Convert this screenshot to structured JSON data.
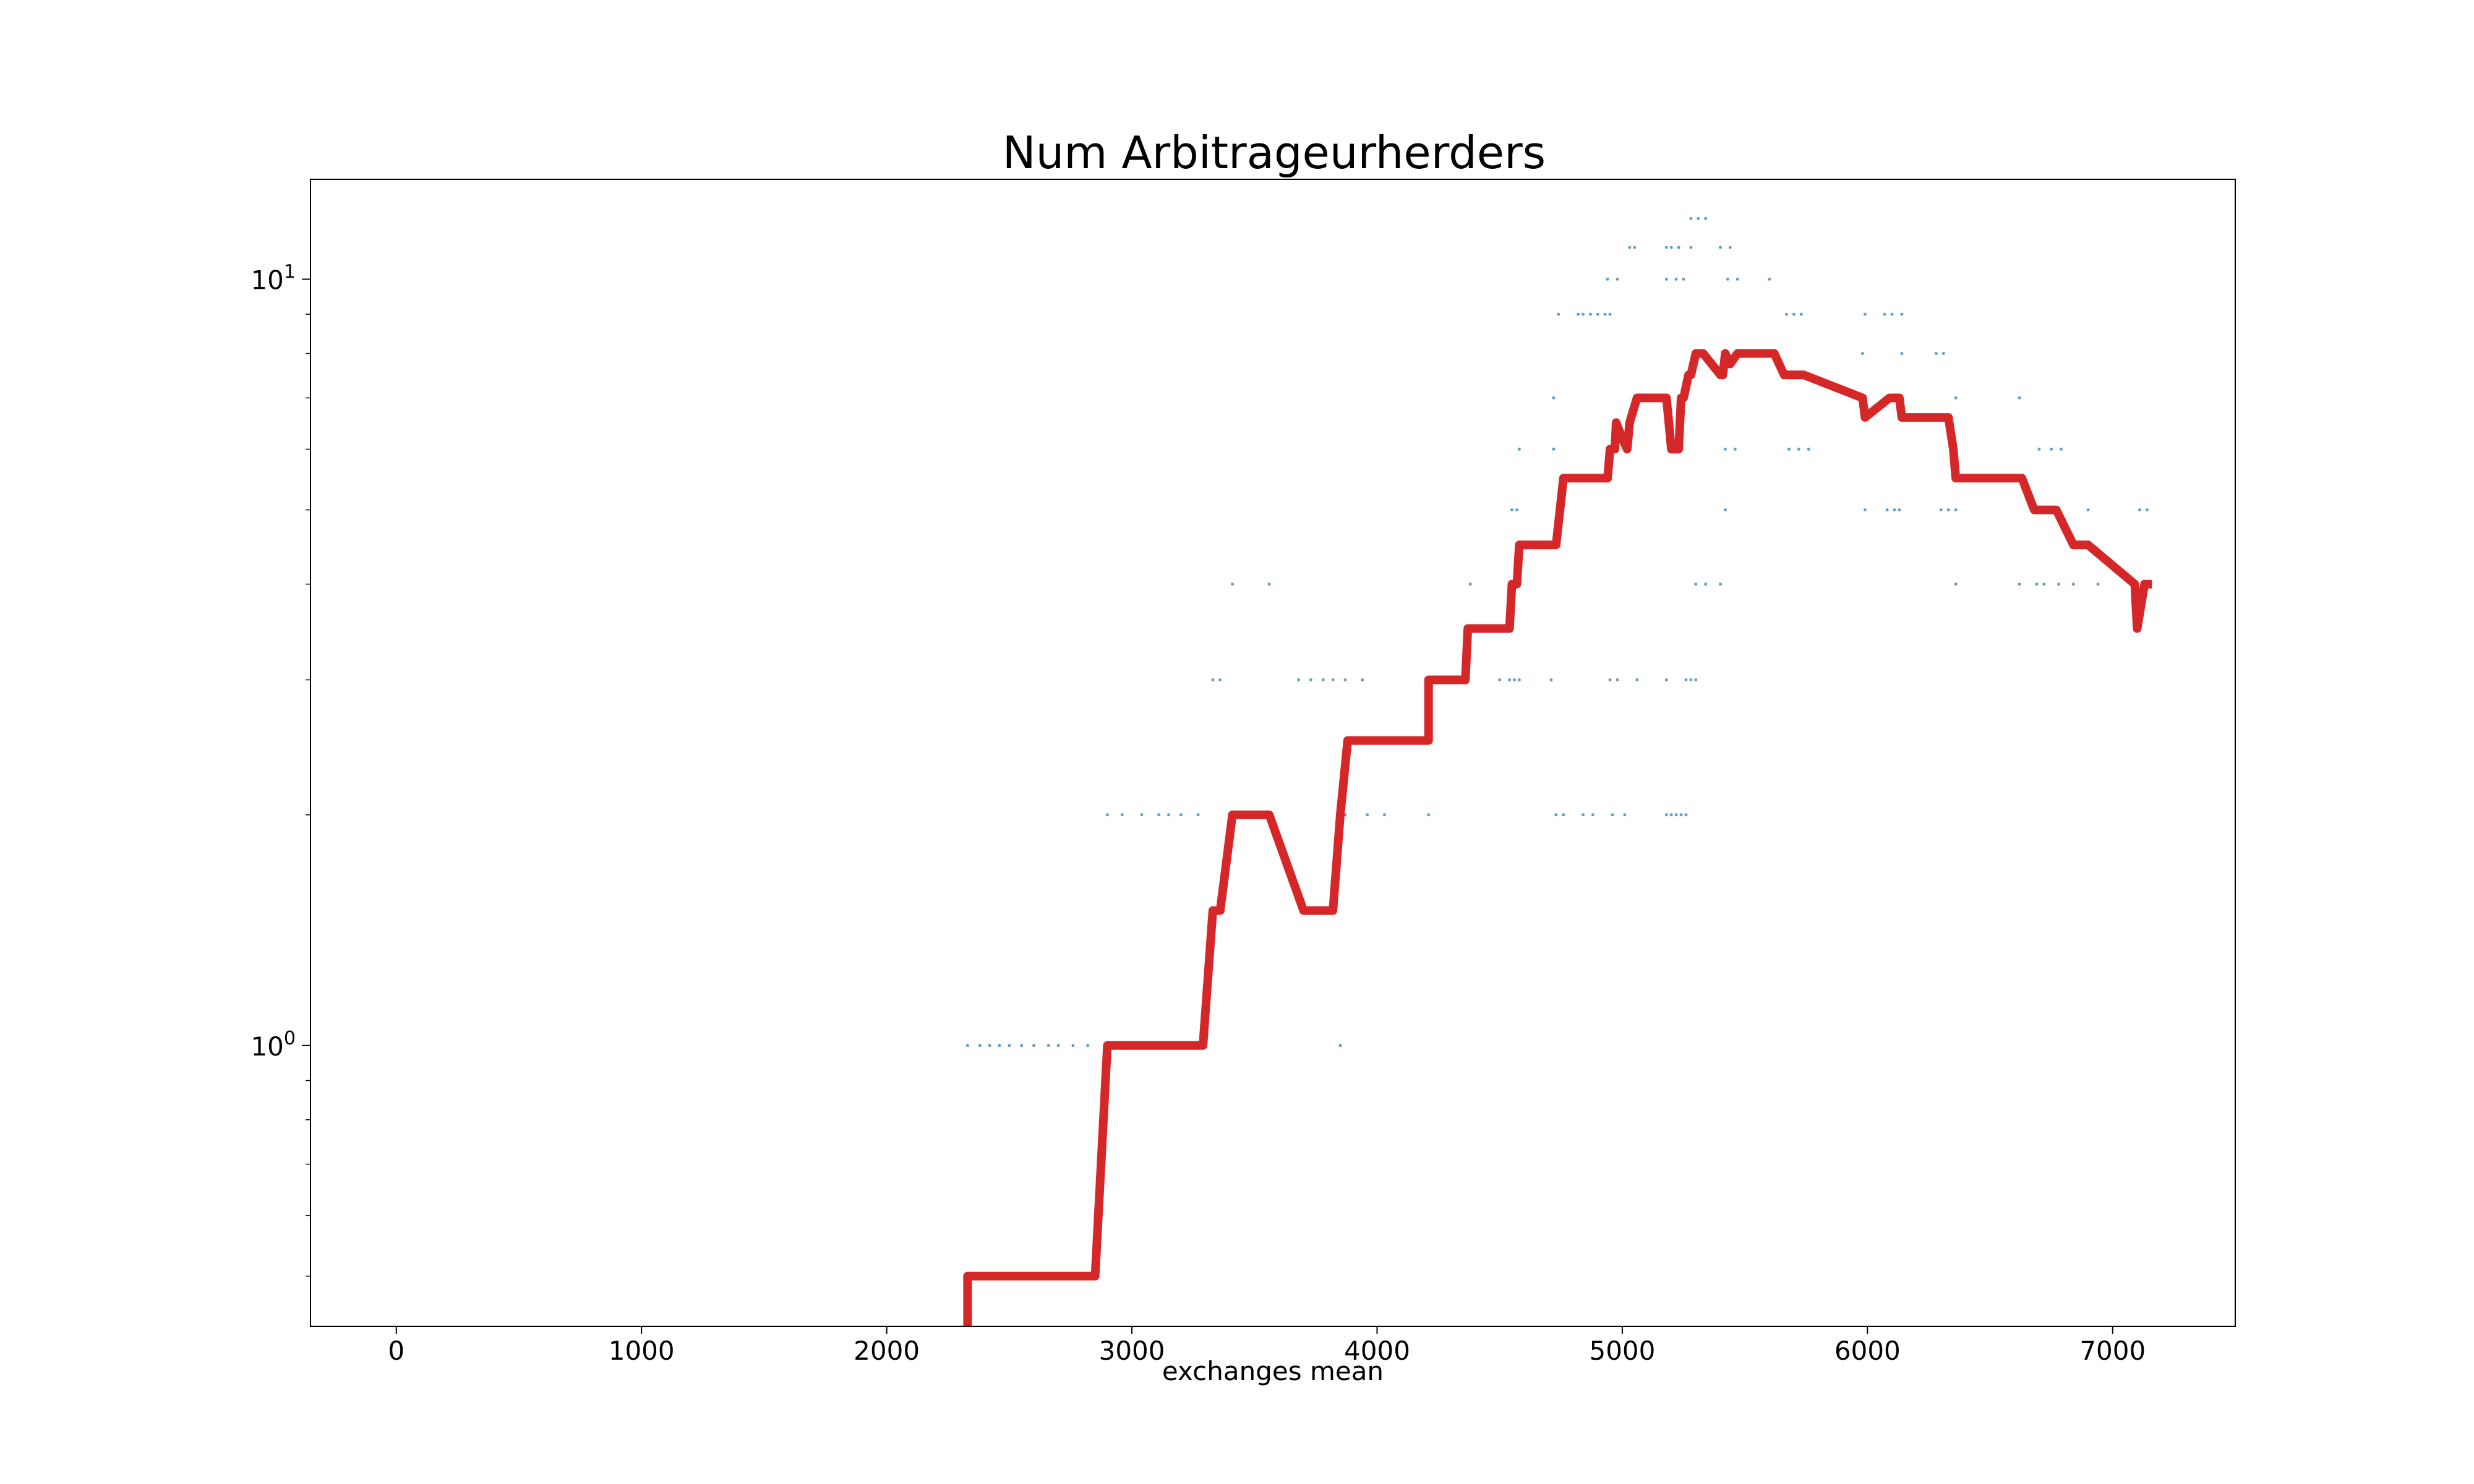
{
  "chart_data": {
    "type": "line",
    "title": "Num Arbitrageurherders",
    "xlabel": "exchanges mean",
    "ylabel": "",
    "x_ticks": [
      "0",
      "1000",
      "2000",
      "3000",
      "4000",
      "5000",
      "6000",
      "7000"
    ],
    "y_tick_labels": [
      {
        "base": "10",
        "exp": "0",
        "value": 1
      },
      {
        "base": "10",
        "exp": "1",
        "value": 10
      }
    ],
    "xlim": [
      -350,
      7500
    ],
    "ylim": [
      0.43,
      13.5
    ],
    "yscale": "log",
    "grid": false,
    "legend": "none",
    "series": [
      {
        "kind": "line",
        "color": "#d62728",
        "x": [
          2330,
          2330,
          2850,
          2900,
          3290,
          3330,
          3360,
          3410,
          3560,
          3700,
          3820,
          3850,
          3880,
          4210,
          4210,
          4360,
          4370,
          4540,
          4550,
          4570,
          4580,
          4730,
          4760,
          4940,
          4950,
          4970,
          4975,
          5000,
          5020,
          5030,
          5060,
          5180,
          5190,
          5200,
          5230,
          5240,
          5250,
          5270,
          5280,
          5300,
          5330,
          5400,
          5410,
          5420,
          5440,
          5470,
          5510,
          5620,
          5660,
          5740,
          5980,
          5990,
          6090,
          6130,
          6140,
          6330,
          6350,
          6360,
          6630,
          6680,
          6770,
          6840,
          6900,
          7090,
          7100,
          7130,
          7160
        ],
        "y": [
          0.43,
          0.5,
          0.5,
          1.0,
          1.0,
          1.5,
          1.5,
          2.0,
          2.0,
          1.5,
          1.5,
          2.0,
          2.5,
          2.5,
          3.0,
          3.0,
          3.5,
          3.5,
          4.0,
          4.0,
          4.5,
          4.5,
          5.5,
          5.5,
          6.0,
          6.0,
          6.5,
          6.2,
          6.0,
          6.5,
          7.0,
          7.0,
          6.5,
          6.0,
          6.0,
          7.0,
          7.0,
          7.5,
          7.5,
          8.0,
          8.0,
          7.5,
          7.5,
          8.0,
          7.75,
          8.0,
          8.0,
          8.0,
          7.5,
          7.5,
          7.0,
          6.6,
          7.0,
          7.0,
          6.6,
          6.6,
          6.0,
          5.5,
          5.5,
          5.0,
          5.0,
          4.5,
          4.5,
          4.0,
          3.5,
          4.0,
          4.0
        ]
      },
      {
        "kind": "scatter",
        "color": "#1f77b4",
        "x": [
          2330,
          2380,
          2420,
          2460,
          2500,
          2550,
          2600,
          2660,
          2700,
          2760,
          2820,
          3850,
          2900,
          2960,
          3040,
          3110,
          3150,
          3200,
          3270,
          3870,
          3960,
          4030,
          4210,
          4730,
          4760,
          4840,
          4880,
          4960,
          5010,
          5180,
          5200,
          5220,
          5240,
          5260,
          3330,
          3360,
          3680,
          3730,
          3780,
          3820,
          3870,
          3940,
          4500,
          4540,
          4560,
          4580,
          4710,
          4950,
          4980,
          5060,
          5180,
          5260,
          5280,
          5300,
          3410,
          3560,
          4380,
          5300,
          5340,
          5400,
          6360,
          6620,
          6690,
          6720,
          6780,
          6840,
          6940,
          4550,
          4570,
          5420,
          5990,
          6080,
          6110,
          6130,
          6300,
          6330,
          6360,
          6900,
          7110,
          7140,
          4580,
          4720,
          5420,
          5460,
          5680,
          5720,
          5760,
          6360,
          6700,
          6750,
          6790,
          4720,
          5980,
          6140,
          6360,
          6620,
          4740,
          4820,
          4840,
          4870,
          4900,
          4930,
          4950,
          5670,
          5700,
          5730,
          5990,
          6070,
          6100,
          6140,
          6280,
          6310,
          4940,
          4980,
          5180,
          5220,
          5250,
          5430,
          5470,
          5600,
          5030,
          5050,
          5180,
          5200,
          5230,
          5280,
          5400,
          5440,
          5280,
          5310,
          5340
        ],
        "y": [
          1,
          1,
          1,
          1,
          1,
          1,
          1,
          1,
          1,
          1,
          1,
          1,
          2,
          2,
          2,
          2,
          2,
          2,
          2,
          2,
          2,
          2,
          2,
          2,
          2,
          2,
          2,
          2,
          2,
          2,
          2,
          2,
          2,
          2,
          3,
          3,
          3,
          3,
          3,
          3,
          3,
          3,
          3,
          3,
          3,
          3,
          3,
          3,
          3,
          3,
          3,
          3,
          3,
          3,
          4,
          4,
          4,
          4,
          4,
          4,
          4,
          4,
          4,
          4,
          4,
          4,
          4,
          5,
          5,
          5,
          5,
          5,
          5,
          5,
          5,
          5,
          5,
          5,
          5,
          5,
          6,
          6,
          6,
          6,
          6,
          6,
          6,
          6,
          6,
          6,
          6,
          7,
          8,
          8,
          7,
          7,
          9,
          9,
          9,
          9,
          9,
          9,
          9,
          9,
          9,
          9,
          9,
          9,
          9,
          9,
          8,
          8,
          10,
          10,
          10,
          10,
          10,
          10,
          10,
          10,
          11,
          11,
          11,
          11,
          11,
          11,
          11,
          11,
          12,
          12,
          12
        ]
      }
    ]
  }
}
